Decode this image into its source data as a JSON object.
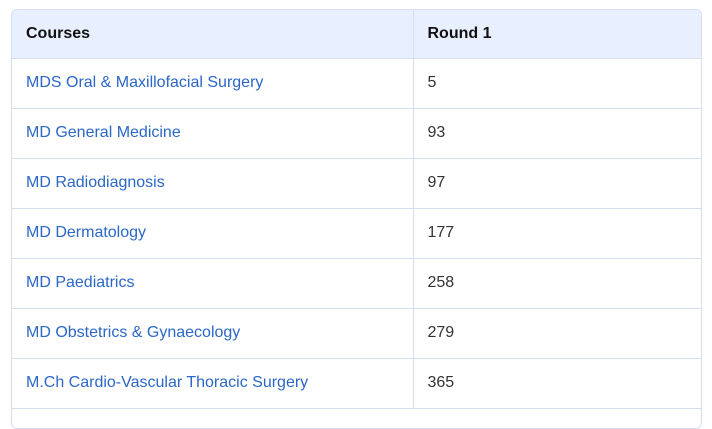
{
  "table": {
    "headers": [
      "Courses",
      "Round 1"
    ],
    "rows": [
      {
        "course": "MDS Oral & Maxillofacial Surgery",
        "round1": "5"
      },
      {
        "course": "MD General Medicine",
        "round1": "93"
      },
      {
        "course": "MD Radiodiagnosis",
        "round1": "97"
      },
      {
        "course": "MD Dermatology",
        "round1": "177"
      },
      {
        "course": "MD Paediatrics",
        "round1": "258"
      },
      {
        "course": "MD Obstetrics & Gynaecology",
        "round1": "279"
      },
      {
        "course": "M.Ch Cardio-Vascular Thoracic Surgery",
        "round1": "365"
      }
    ]
  },
  "colors": {
    "header_bg": "#e8efff",
    "border": "#d5dff0",
    "link": "#2b67c7"
  }
}
